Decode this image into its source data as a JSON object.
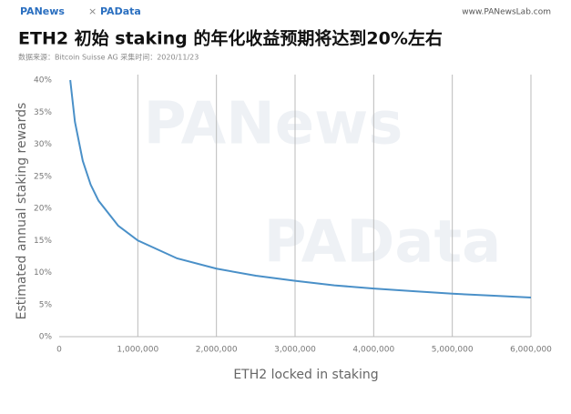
{
  "header": {
    "logo_left": "PANews",
    "separator": "×",
    "logo_right": "PAData",
    "url": "www.PANewsLab.com"
  },
  "chart_data": {
    "type": "line",
    "title": "ETH2 初始 staking 的年化收益预期将达到20%左右",
    "source": "数据来源：Bitcoin Suisse AG   采集时间：2020/11/23",
    "watermarks": [
      "PANews",
      "PAData"
    ],
    "x_label": "ETH2 locked in staking",
    "y_label": "Estimated annual staking rewards",
    "x": [
      140625,
      200000,
      300000,
      400000,
      500000,
      750000,
      1000000,
      1500000,
      2000000,
      2500000,
      3000000,
      3500000,
      4000000,
      4500000,
      5000000,
      5500000,
      6000000
    ],
    "values": [
      40,
      33.5,
      27.4,
      23.7,
      21.2,
      17.3,
      15,
      12.2,
      10.6,
      9.5,
      8.7,
      8.0,
      7.5,
      7.1,
      6.7,
      6.4,
      6.1
    ],
    "color": "#4a90c8",
    "xlim": [
      0,
      6000000
    ],
    "ylim": [
      0,
      40
    ],
    "xticks": [
      0,
      {
        "value": 1000000,
        "label": "1,000,000"
      },
      {
        "value": 2000000,
        "label": "2,000,000"
      },
      {
        "value": 3000000,
        "label": "3,000,000"
      },
      {
        "value": 4000000,
        "label": "4,000,000"
      },
      {
        "value": 5000000,
        "label": "5,000,000"
      },
      {
        "value": 6000000,
        "label": "6,000,000"
      }
    ],
    "yticks": [
      {
        "value": 0,
        "label": "0%"
      },
      {
        "value": 5,
        "label": "5%"
      },
      {
        "value": 10,
        "label": "10%"
      },
      {
        "value": 15,
        "label": "15%"
      },
      {
        "value": 20,
        "label": "20%"
      },
      {
        "value": 25,
        "label": "25%"
      },
      {
        "value": 30,
        "label": "30%"
      },
      {
        "value": 35,
        "label": "35%"
      },
      {
        "value": 40,
        "label": "40%"
      }
    ],
    "grid": true
  }
}
